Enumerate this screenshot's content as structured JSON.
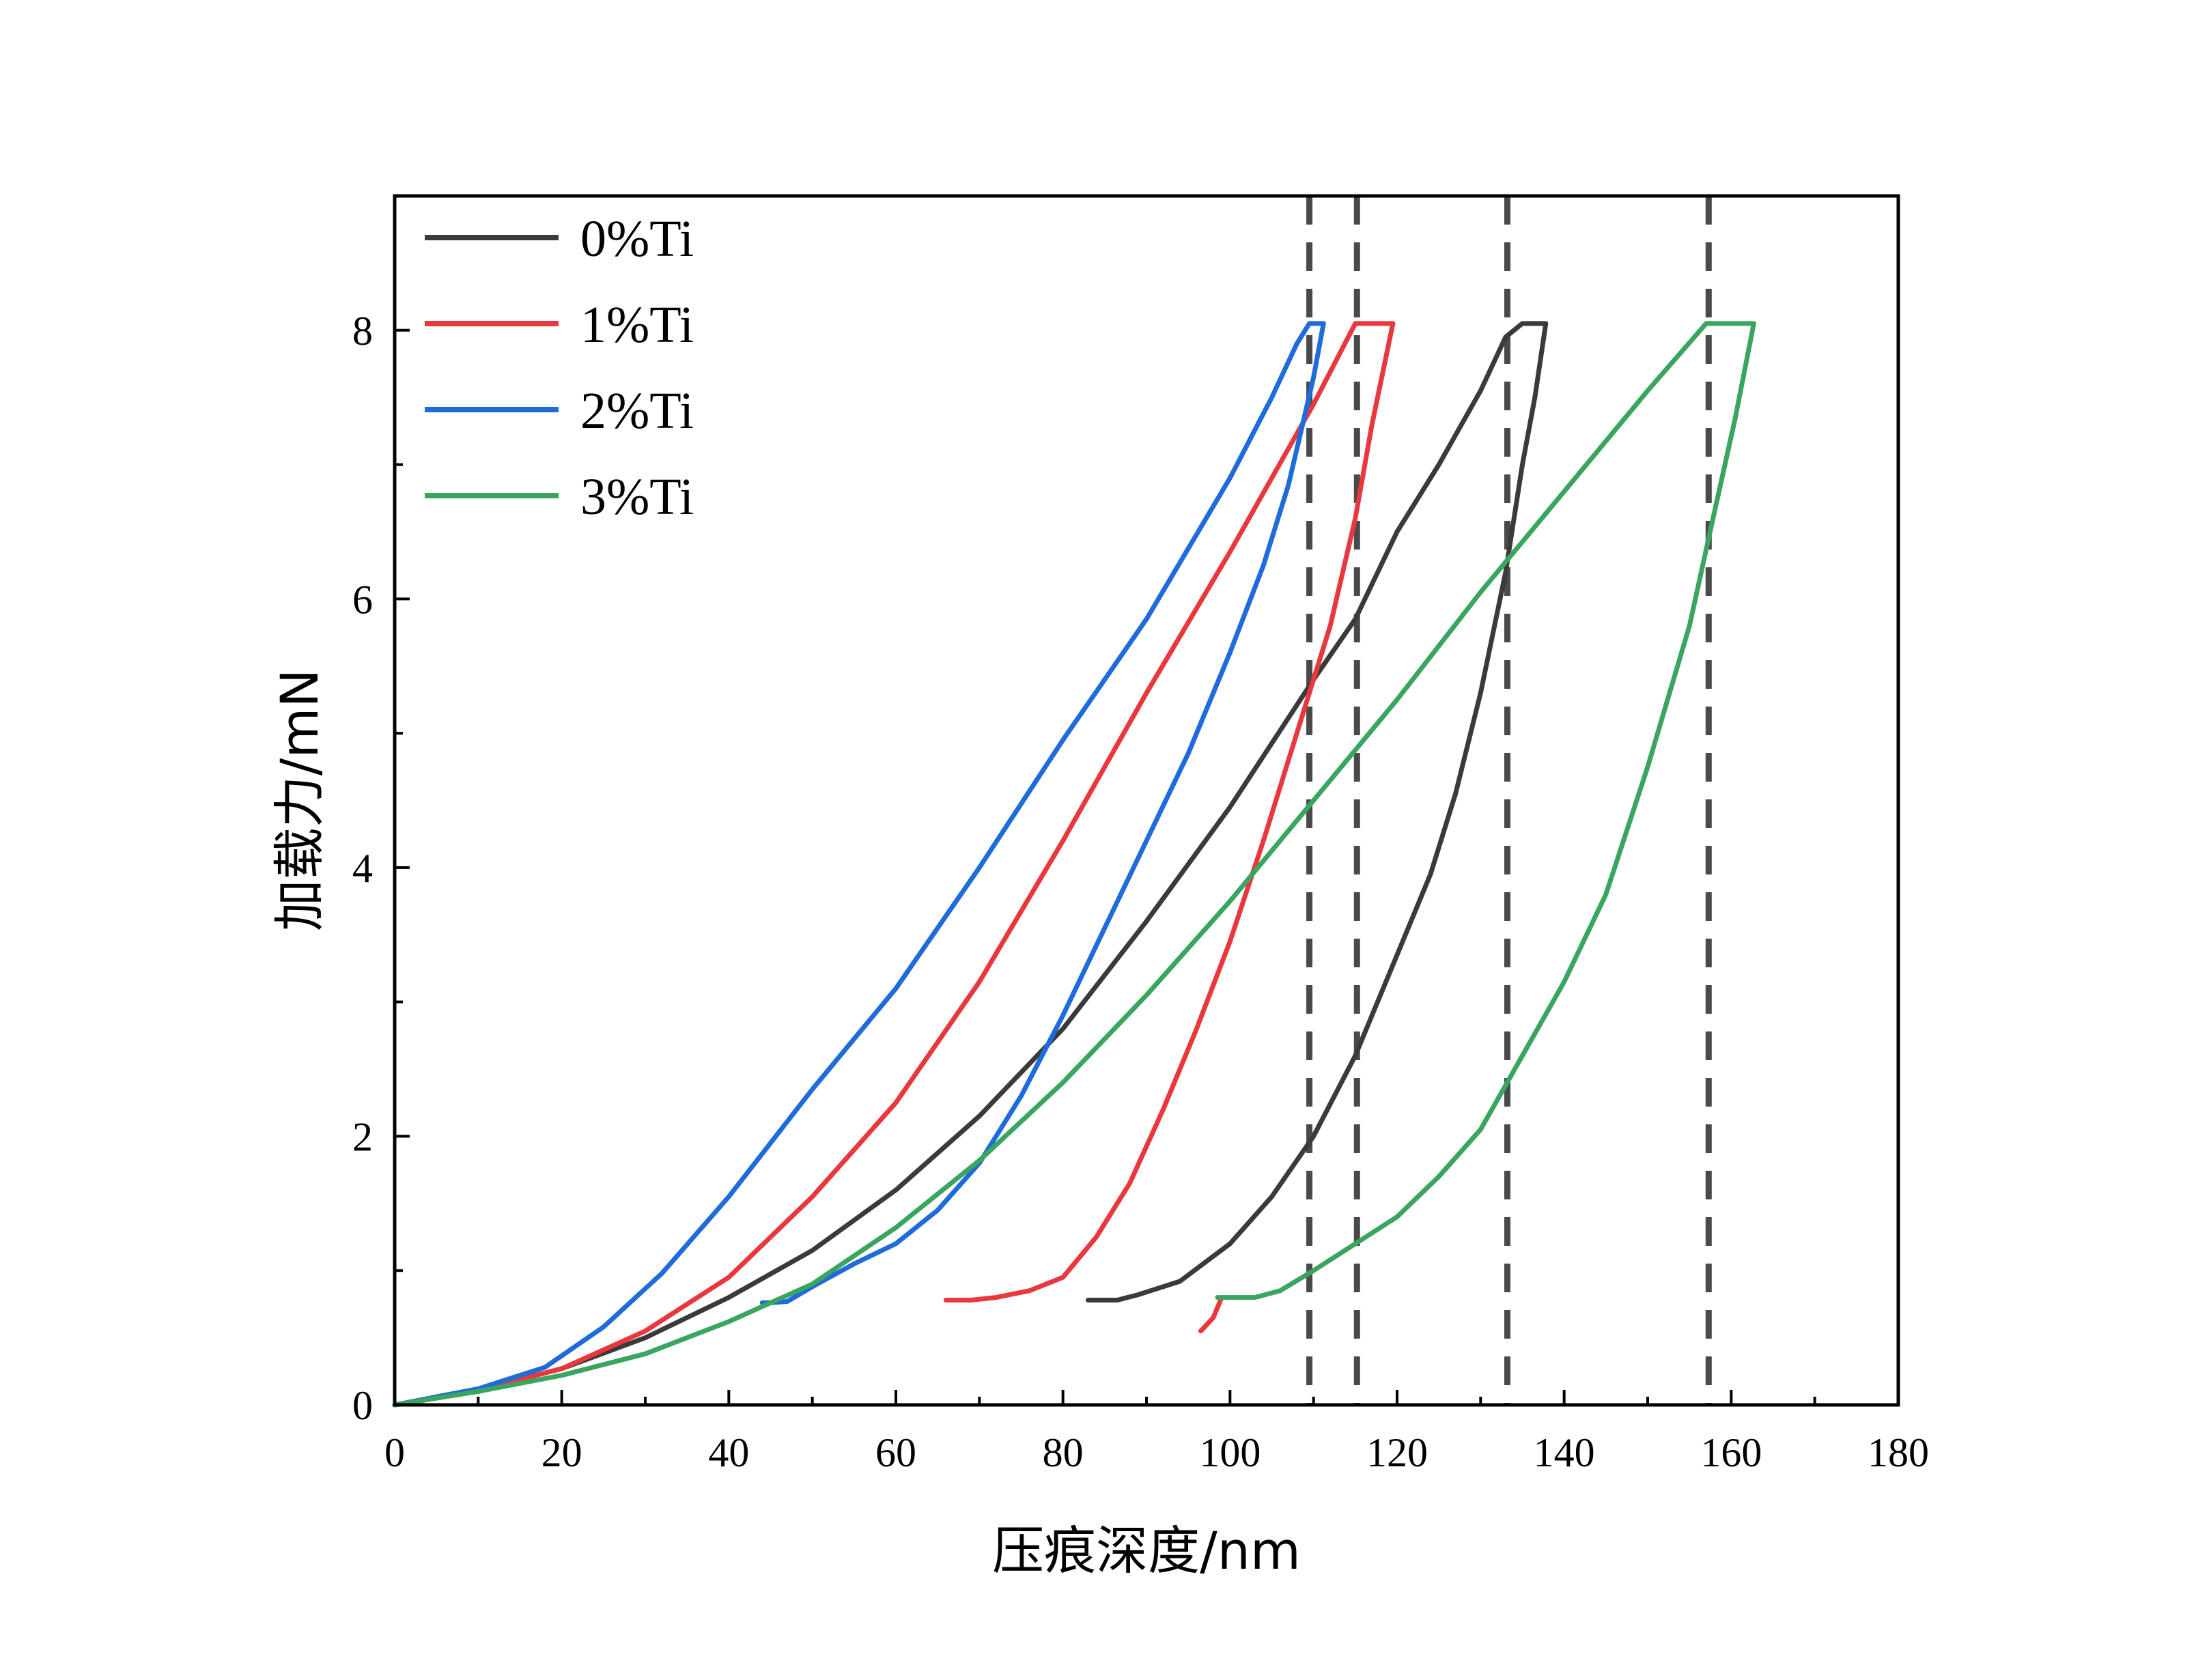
{
  "chart_data": {
    "type": "line",
    "xlabel": "压痕深度/nm",
    "ylabel": "加载力/mN",
    "xlim": [
      0,
      180
    ],
    "ylim": [
      0,
      9
    ],
    "xticks": [
      0,
      20,
      40,
      60,
      80,
      100,
      120,
      140,
      160,
      180
    ],
    "yticks": [
      0,
      2,
      4,
      6,
      8
    ],
    "grid": false,
    "legend_position": "top-left",
    "reference_lines_x": [
      109.5,
      115.2,
      133.2,
      157.3
    ],
    "series": [
      {
        "name": "0%Ti",
        "color": "#3a3a3a",
        "loading": [
          [
            0,
            0
          ],
          [
            10,
            0.11
          ],
          [
            20,
            0.27
          ],
          [
            30,
            0.5
          ],
          [
            40,
            0.8
          ],
          [
            50,
            1.15
          ],
          [
            60,
            1.6
          ],
          [
            70,
            2.15
          ],
          [
            80,
            2.8
          ],
          [
            90,
            3.6
          ],
          [
            100,
            4.45
          ],
          [
            110,
            5.4
          ],
          [
            115,
            5.85
          ],
          [
            120,
            6.5
          ],
          [
            125,
            7.0
          ],
          [
            130,
            7.55
          ],
          [
            133,
            7.95
          ],
          [
            135,
            8.05
          ]
        ],
        "hold": [
          [
            135,
            8.05
          ],
          [
            137.8,
            8.05
          ]
        ],
        "unloading": [
          [
            137.8,
            8.05
          ],
          [
            136.5,
            7.5
          ],
          [
            135,
            7.0
          ],
          [
            133,
            6.2
          ],
          [
            130,
            5.3
          ],
          [
            127,
            4.55
          ],
          [
            124,
            3.95
          ],
          [
            120,
            3.35
          ],
          [
            115,
            2.6
          ],
          [
            110,
            2.0
          ],
          [
            105,
            1.55
          ],
          [
            100,
            1.2
          ],
          [
            94,
            0.92
          ],
          [
            89,
            0.82
          ],
          [
            86.5,
            0.78
          ]
        ],
        "tail": [
          [
            86.5,
            0.78
          ],
          [
            83,
            0.78
          ]
        ]
      },
      {
        "name": "1%Ti",
        "color": "#e8383d",
        "loading": [
          [
            0,
            0
          ],
          [
            10,
            0.11
          ],
          [
            20,
            0.27
          ],
          [
            30,
            0.55
          ],
          [
            40,
            0.95
          ],
          [
            50,
            1.55
          ],
          [
            60,
            2.25
          ],
          [
            70,
            3.15
          ],
          [
            80,
            4.2
          ],
          [
            90,
            5.3
          ],
          [
            100,
            6.35
          ],
          [
            105,
            6.9
          ],
          [
            110,
            7.45
          ],
          [
            115,
            8.05
          ]
        ],
        "hold": [
          [
            115,
            8.05
          ],
          [
            119.5,
            8.05
          ]
        ],
        "unloading": [
          [
            119.5,
            8.05
          ],
          [
            117,
            7.3
          ],
          [
            115,
            6.6
          ],
          [
            112,
            5.8
          ],
          [
            108,
            5.0
          ],
          [
            104,
            4.2
          ],
          [
            100,
            3.45
          ],
          [
            96,
            2.8
          ],
          [
            92,
            2.2
          ],
          [
            88,
            1.65
          ],
          [
            84,
            1.25
          ],
          [
            80,
            0.95
          ],
          [
            76,
            0.85
          ],
          [
            72,
            0.8
          ],
          [
            69,
            0.78
          ]
        ],
        "tail": [
          [
            69,
            0.78
          ],
          [
            66,
            0.78
          ]
        ],
        "artifact": [
          [
            96.5,
            0.55
          ],
          [
            98,
            0.65
          ],
          [
            99,
            0.8
          ]
        ]
      },
      {
        "name": "2%Ti",
        "color": "#1f6bdb",
        "loading": [
          [
            0,
            0
          ],
          [
            10,
            0.12
          ],
          [
            18,
            0.28
          ],
          [
            25,
            0.58
          ],
          [
            32,
            0.98
          ],
          [
            40,
            1.55
          ],
          [
            50,
            2.35
          ],
          [
            60,
            3.1
          ],
          [
            70,
            4.0
          ],
          [
            80,
            4.95
          ],
          [
            90,
            5.85
          ],
          [
            100,
            6.9
          ],
          [
            105,
            7.5
          ],
          [
            108,
            7.9
          ],
          [
            109.5,
            8.05
          ]
        ],
        "hold": [
          [
            109.5,
            8.05
          ],
          [
            111.2,
            8.05
          ]
        ],
        "unloading": [
          [
            111.2,
            8.05
          ],
          [
            110,
            7.65
          ],
          [
            107,
            6.85
          ],
          [
            104,
            6.25
          ],
          [
            100,
            5.6
          ],
          [
            95,
            4.85
          ],
          [
            90,
            4.2
          ],
          [
            85,
            3.55
          ],
          [
            80,
            2.9
          ],
          [
            75,
            2.3
          ],
          [
            70,
            1.8
          ],
          [
            65,
            1.45
          ],
          [
            60,
            1.2
          ],
          [
            55,
            1.05
          ],
          [
            50,
            0.88
          ],
          [
            47,
            0.77
          ],
          [
            45,
            0.76
          ]
        ],
        "tail": [
          [
            45,
            0.76
          ],
          [
            44,
            0.76
          ]
        ]
      },
      {
        "name": "3%Ti",
        "color": "#3aa55f",
        "loading": [
          [
            0,
            0
          ],
          [
            10,
            0.1
          ],
          [
            20,
            0.22
          ],
          [
            30,
            0.38
          ],
          [
            40,
            0.62
          ],
          [
            50,
            0.9
          ],
          [
            60,
            1.32
          ],
          [
            70,
            1.82
          ],
          [
            80,
            2.4
          ],
          [
            90,
            3.05
          ],
          [
            100,
            3.75
          ],
          [
            110,
            4.5
          ],
          [
            120,
            5.25
          ],
          [
            130,
            6.05
          ],
          [
            140,
            6.8
          ],
          [
            150,
            7.55
          ],
          [
            157,
            8.05
          ]
        ],
        "hold": [
          [
            157,
            8.05
          ],
          [
            162.7,
            8.05
          ]
        ],
        "unloading": [
          [
            162.7,
            8.05
          ],
          [
            160.5,
            7.35
          ],
          [
            158,
            6.65
          ],
          [
            155,
            5.8
          ],
          [
            150,
            4.75
          ],
          [
            145,
            3.8
          ],
          [
            140,
            3.15
          ],
          [
            135,
            2.6
          ],
          [
            130,
            2.05
          ],
          [
            125,
            1.7
          ],
          [
            120,
            1.4
          ],
          [
            115,
            1.2
          ],
          [
            110,
            1.0
          ],
          [
            106,
            0.85
          ],
          [
            103,
            0.8
          ]
        ],
        "tail": [
          [
            103,
            0.8
          ],
          [
            98.5,
            0.8
          ]
        ]
      }
    ]
  }
}
